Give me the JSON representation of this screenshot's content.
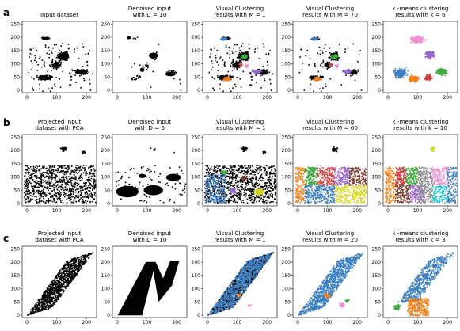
{
  "row_labels": [
    "a",
    "b",
    "c"
  ],
  "rows": [
    {
      "panels": [
        {
          "title": [
            "Input dataset"
          ],
          "type": "input"
        },
        {
          "title": [
            "Denoised input",
            "with D = 10"
          ],
          "type": "denoised"
        },
        {
          "title": [
            "Visual Clustering",
            "results with M = 1"
          ],
          "type": "vc1"
        },
        {
          "title": [
            "Visual Clustering",
            "results with M = 70"
          ],
          "type": "vcM"
        },
        {
          "title": [
            "k -means clustering",
            "results with k = 6"
          ],
          "type": "kmeans"
        }
      ],
      "yticks": [
        "0",
        "50",
        "100",
        "150",
        "200",
        "250"
      ],
      "xticks": [
        "0",
        "100",
        "200"
      ]
    },
    {
      "panels": [
        {
          "title": [
            "Projected input",
            "dataset with PCA"
          ],
          "type": "input"
        },
        {
          "title": [
            "Denoised input",
            "with D = 5"
          ],
          "type": "denoised"
        },
        {
          "title": [
            "Visual Clustering",
            "results with M = 1"
          ],
          "type": "vc1"
        },
        {
          "title": [
            "Visual Clustering",
            "results with M = 60"
          ],
          "type": "vcM"
        },
        {
          "title": [
            "k -means clustering",
            "results with k = 10"
          ],
          "type": "kmeans"
        }
      ],
      "yticks": [
        "0",
        "50",
        "100",
        "150",
        "200",
        "250"
      ],
      "xticks": [
        "0",
        "100",
        "200"
      ]
    },
    {
      "panels": [
        {
          "title": [
            "Projected input",
            "dataset with PCA"
          ],
          "type": "input"
        },
        {
          "title": [
            "Denoised input",
            "with D = 10"
          ],
          "type": "denoised"
        },
        {
          "title": [
            "Visual Clustering",
            "results with M = 1"
          ],
          "type": "vc1"
        },
        {
          "title": [
            "Visual Clustering",
            "results with M = 20"
          ],
          "type": "vcM"
        },
        {
          "title": [
            "k -means clustering",
            "results with k = 3"
          ],
          "type": "kmeans"
        }
      ],
      "yticks": [
        "0",
        "50",
        "100",
        "150",
        "200",
        "250"
      ],
      "xticks": [
        "0",
        "100",
        "200"
      ]
    }
  ],
  "colors": {
    "black": "#000000",
    "blue": "#3b7fc4",
    "orange": "#f57f17",
    "green": "#3cab3c",
    "red": "#d43a3a",
    "purple": "#9966cc",
    "brown": "#7a3b2e",
    "pink": "#f08fcf",
    "gray": "#8c8c8c",
    "yellow": "#d6d61e",
    "cyan": "#22c2cf"
  }
}
